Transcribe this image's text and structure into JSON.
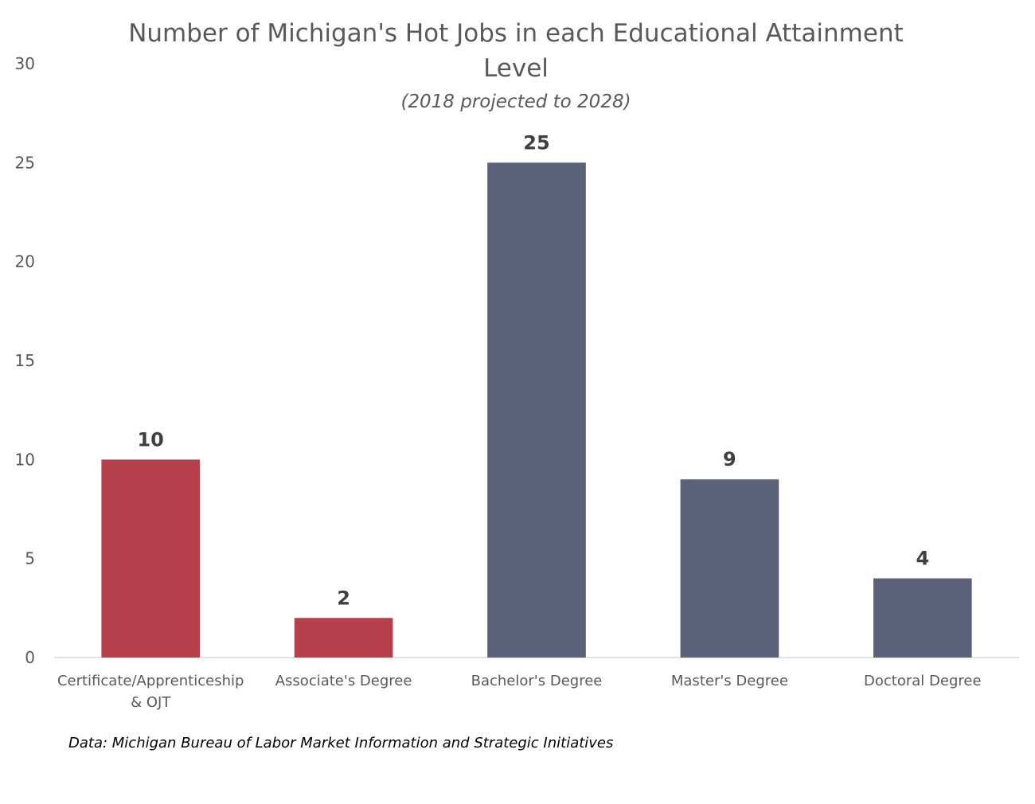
{
  "chart_data": {
    "type": "bar",
    "title_lines": [
      "Number of Michigan's Hot Jobs in each Educational Attainment",
      "Level"
    ],
    "subtitle": "(2018 projected to 2028)",
    "categories": [
      [
        "Certificate/Apprenticeship",
        "& OJT"
      ],
      [
        "Associate's Degree"
      ],
      [
        "Bachelor's Degree"
      ],
      [
        "Master's Degree"
      ],
      [
        "Doctoral Degree"
      ]
    ],
    "values": [
      10,
      2,
      25,
      9,
      4
    ],
    "value_labels": [
      "10",
      "2",
      "25",
      "9",
      "4"
    ],
    "bar_colors": [
      "#b5404b",
      "#b5404b",
      "#5a6178",
      "#5a6178",
      "#5a6178"
    ],
    "y_ticks": [
      "0",
      "5",
      "10",
      "15",
      "20",
      "25",
      "30"
    ],
    "ylim": [
      0,
      30
    ],
    "grid": false,
    "legend": "none",
    "source_note": "Data: Michigan Bureau of Labor Market Information and Strategic Initiatives"
  }
}
